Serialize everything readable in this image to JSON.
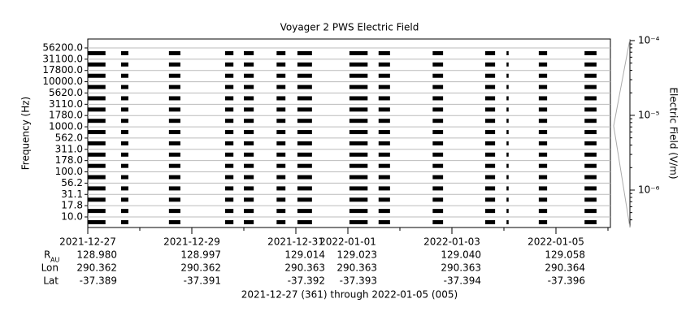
{
  "chart_data": {
    "type": "spectrogram",
    "title": "Voyager 2 PWS Electric Field",
    "ylabel": "Frequency (Hz)",
    "channels": [
      "10.0",
      "17.8",
      "31.1",
      "56.2",
      "100.0",
      "178.0",
      "311.0",
      "562.0",
      "1000.0",
      "1780.0",
      "3110.0",
      "5620.0",
      "10000.0",
      "17800.0",
      "31100.0",
      "56200.0"
    ],
    "xlim": [
      0,
      10
    ],
    "xticks": [
      {
        "value": 0,
        "label": "2021-12-27"
      },
      {
        "value": 2,
        "label": "2021-12-29"
      },
      {
        "value": 4,
        "label": "2021-12-31"
      },
      {
        "value": 5,
        "label": "2022-01-01"
      },
      {
        "value": 7,
        "label": "2022-01-03"
      },
      {
        "value": 9,
        "label": "2022-01-05"
      }
    ],
    "segments": [
      [
        0,
        0.34
      ],
      [
        0.64,
        0.78
      ],
      [
        1.56,
        1.78
      ],
      [
        2.64,
        2.8
      ],
      [
        3.0,
        3.19
      ],
      [
        3.63,
        3.8
      ],
      [
        4.03,
        4.31
      ],
      [
        5.03,
        5.38
      ],
      [
        5.59,
        5.81
      ],
      [
        6.63,
        6.83
      ],
      [
        7.64,
        7.83
      ],
      [
        8.05,
        8.09
      ],
      [
        8.67,
        8.83
      ],
      [
        9.55,
        9.78
      ]
    ],
    "color": "#000000",
    "colorbar": {
      "label": "Electric Field (V/m)",
      "log": true,
      "ylim": [
        3.16e-07,
        0.000105
      ],
      "yticks": [
        {
          "value": 0.0001,
          "label": "10⁻⁴"
        },
        {
          "value": 1e-05,
          "label": "10⁻⁵"
        },
        {
          "value": 1e-06,
          "label": "10⁻⁶"
        }
      ]
    },
    "ephemeris": {
      "rows": [
        {
          "name": "R",
          "sub": "AU",
          "values": [
            "128.980",
            "128.997",
            "129.014",
            "129.023",
            "129.040",
            "129.058"
          ]
        },
        {
          "name": "Lon",
          "values": [
            "290.362",
            "290.362",
            "290.363",
            "290.363",
            "290.363",
            "290.364"
          ]
        },
        {
          "name": "Lat",
          "values": [
            "-37.389",
            "-37.391",
            "-37.392",
            "-37.393",
            "-37.394",
            "-37.396"
          ]
        }
      ]
    },
    "footer": "2021-12-27 (361) through 2022-01-05 (005)"
  }
}
